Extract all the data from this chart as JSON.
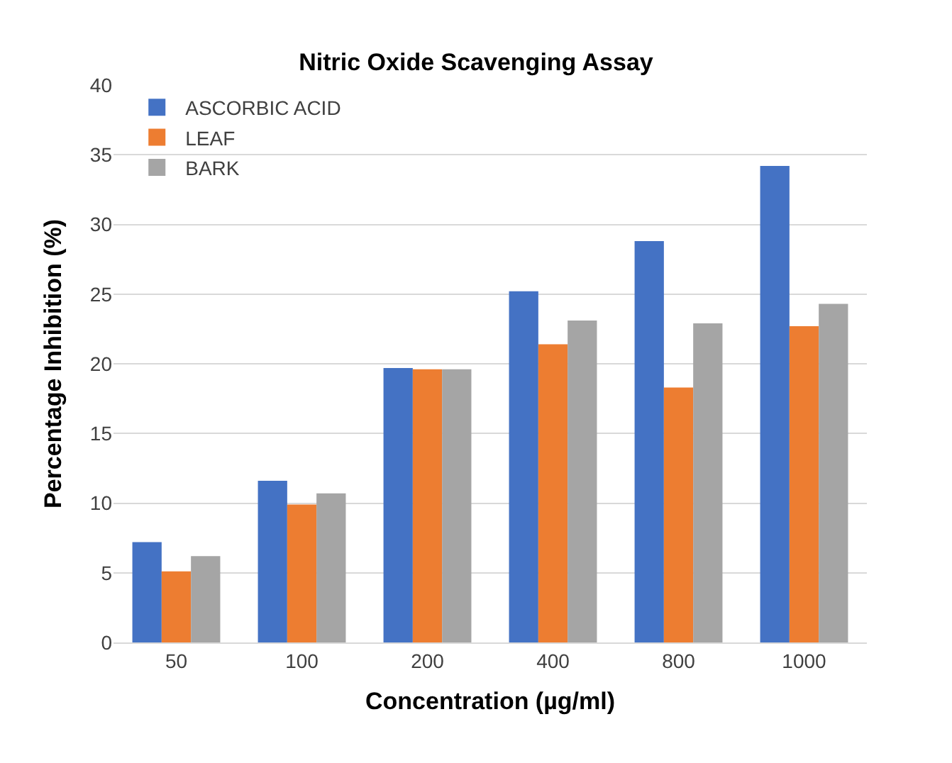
{
  "chart_data": {
    "type": "bar",
    "title": "Nitric Oxide Scavenging Assay",
    "xlabel": "Concentration (µg/ml)",
    "ylabel": "Percentage Inhibition (%)",
    "categories": [
      "50",
      "100",
      "200",
      "400",
      "800",
      "1000"
    ],
    "series": [
      {
        "name": "ASCORBIC ACID",
        "color": "#4472c4",
        "values": [
          7.2,
          11.6,
          19.7,
          25.2,
          28.8,
          34.2
        ]
      },
      {
        "name": "LEAF",
        "color": "#ed7d31",
        "values": [
          5.1,
          9.9,
          19.6,
          21.4,
          18.3,
          22.7
        ]
      },
      {
        "name": "BARK",
        "color": "#a5a5a5",
        "values": [
          6.2,
          10.7,
          19.6,
          23.1,
          22.9,
          24.3
        ]
      }
    ],
    "ylim": [
      0,
      40
    ],
    "yticks": [
      0,
      5,
      10,
      15,
      20,
      25,
      30,
      35,
      40
    ],
    "grid": "y",
    "legend": "top left"
  }
}
